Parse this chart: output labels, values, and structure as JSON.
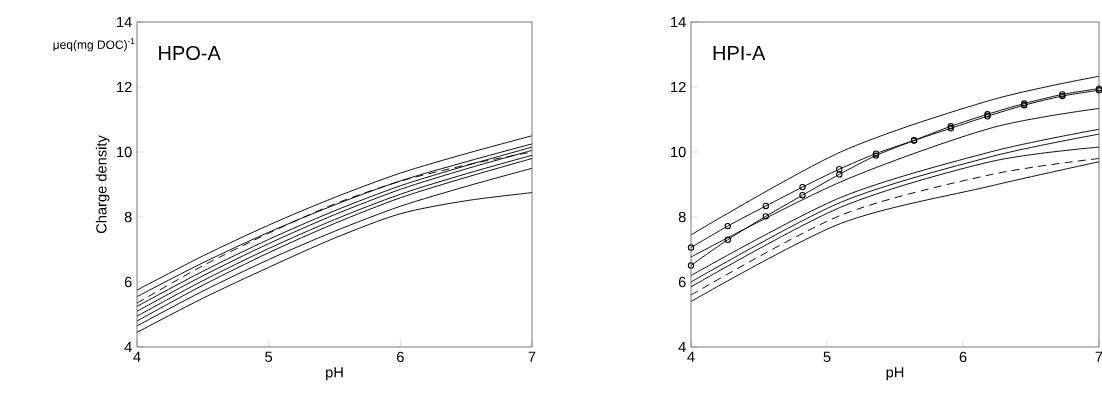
{
  "chart_data": [
    {
      "type": "line",
      "title": "HPO-A",
      "xlabel": "pH",
      "ylabel": "Charge density",
      "annotations": [
        "μeq(mg DOC)$^{-1}$"
      ],
      "x": [
        4,
        4.5,
        5,
        5.5,
        6,
        6.5,
        7
      ],
      "xlim": [
        4,
        7
      ],
      "ylim": [
        4,
        14
      ],
      "xticks": [
        4,
        5,
        6,
        7
      ],
      "yticks": [
        4,
        6,
        8,
        10,
        12,
        14
      ],
      "grid": false,
      "marker": "none",
      "series": [
        {
          "color": "#000000",
          "line_style": "solid",
          "values": [
            5.75,
            6.8,
            7.75,
            8.6,
            9.35,
            9.95,
            10.5
          ]
        },
        {
          "color": "#000000",
          "line_style": "solid",
          "values": [
            5.55,
            6.59,
            7.53,
            8.37,
            9.11,
            9.7,
            10.25
          ]
        },
        {
          "color": "#000000",
          "line_style": "dashed",
          "values": [
            5.35,
            6.5,
            7.5,
            8.4,
            9.1,
            9.6,
            10.0
          ]
        },
        {
          "color": "#000000",
          "line_style": "solid",
          "values": [
            5.25,
            6.33,
            7.31,
            8.19,
            8.96,
            9.58,
            10.15
          ]
        },
        {
          "color": "#000000",
          "line_style": "solid",
          "values": [
            5.1,
            6.19,
            7.18,
            8.07,
            8.85,
            9.48,
            10.05
          ]
        },
        {
          "color": "#000000",
          "line_style": "solid",
          "values": [
            4.95,
            6.04,
            7.03,
            7.92,
            8.7,
            9.33,
            9.9
          ]
        },
        {
          "color": "#000000",
          "line_style": "solid",
          "values": [
            4.8,
            5.9,
            6.9,
            7.8,
            8.59,
            9.22,
            9.8
          ]
        },
        {
          "color": "#000000",
          "line_style": "solid",
          "values": [
            4.65,
            5.72,
            6.69,
            7.56,
            8.33,
            8.94,
            9.5
          ]
        },
        {
          "color": "#000000",
          "line_style": "solid",
          "values": [
            4.45,
            5.5,
            6.45,
            7.35,
            8.1,
            8.5,
            8.75
          ]
        }
      ]
    },
    {
      "type": "line",
      "title": "HPI-A",
      "xlabel": "pH",
      "x": [
        4,
        5.1,
        6.2,
        7
      ],
      "xlim": [
        4,
        7
      ],
      "ylim": [
        4,
        14
      ],
      "xticks": [
        4,
        5,
        6,
        7
      ],
      "yticks": [
        4,
        6,
        8,
        10,
        12,
        14
      ],
      "grid": false,
      "marker": "none",
      "series": [
        {
          "color": "#000000",
          "line_style": "solid",
          "values": [
            7.45,
            10.0,
            11.59,
            12.33
          ]
        },
        {
          "color": "#000000",
          "line_style": "solid",
          "marker": "circle",
          "x": [
            4,
            4.27,
            4.55,
            4.82,
            5.09,
            5.36,
            5.64,
            5.91,
            6.18,
            6.45,
            6.73,
            7
          ],
          "values": [
            7.06,
            7.72,
            8.34,
            8.92,
            9.47,
            9.95,
            10.36,
            10.79,
            11.16,
            11.49,
            11.77,
            11.95
          ]
        },
        {
          "color": "#000000",
          "line_style": "solid",
          "marker": "circle",
          "x": [
            4,
            4.27,
            4.55,
            4.82,
            5.09,
            5.36,
            5.64,
            5.91,
            6.18,
            6.45,
            6.73,
            7
          ],
          "values": [
            6.51,
            7.3,
            8.02,
            8.67,
            9.31,
            9.89,
            10.35,
            10.73,
            11.1,
            11.44,
            11.72,
            11.9
          ]
        },
        {
          "color": "#000000",
          "line_style": "solid",
          "values": [
            6.77,
            9.08,
            10.73,
            11.34
          ]
        },
        {
          "color": "#000000",
          "line_style": "solid",
          "values": [
            6.2,
            8.6,
            10.0,
            10.7
          ]
        },
        {
          "color": "#000000",
          "line_style": "solid",
          "values": [
            6.0,
            8.45,
            9.85,
            10.55
          ]
        },
        {
          "color": "#000000",
          "line_style": "solid",
          "values": [
            5.85,
            8.3,
            9.7,
            10.15
          ]
        },
        {
          "color": "#000000",
          "line_style": "dashed",
          "values": [
            5.6,
            8.05,
            9.3,
            9.8
          ]
        },
        {
          "color": "#000000",
          "line_style": "solid",
          "values": [
            5.4,
            7.8,
            8.95,
            9.7
          ]
        }
      ]
    }
  ]
}
